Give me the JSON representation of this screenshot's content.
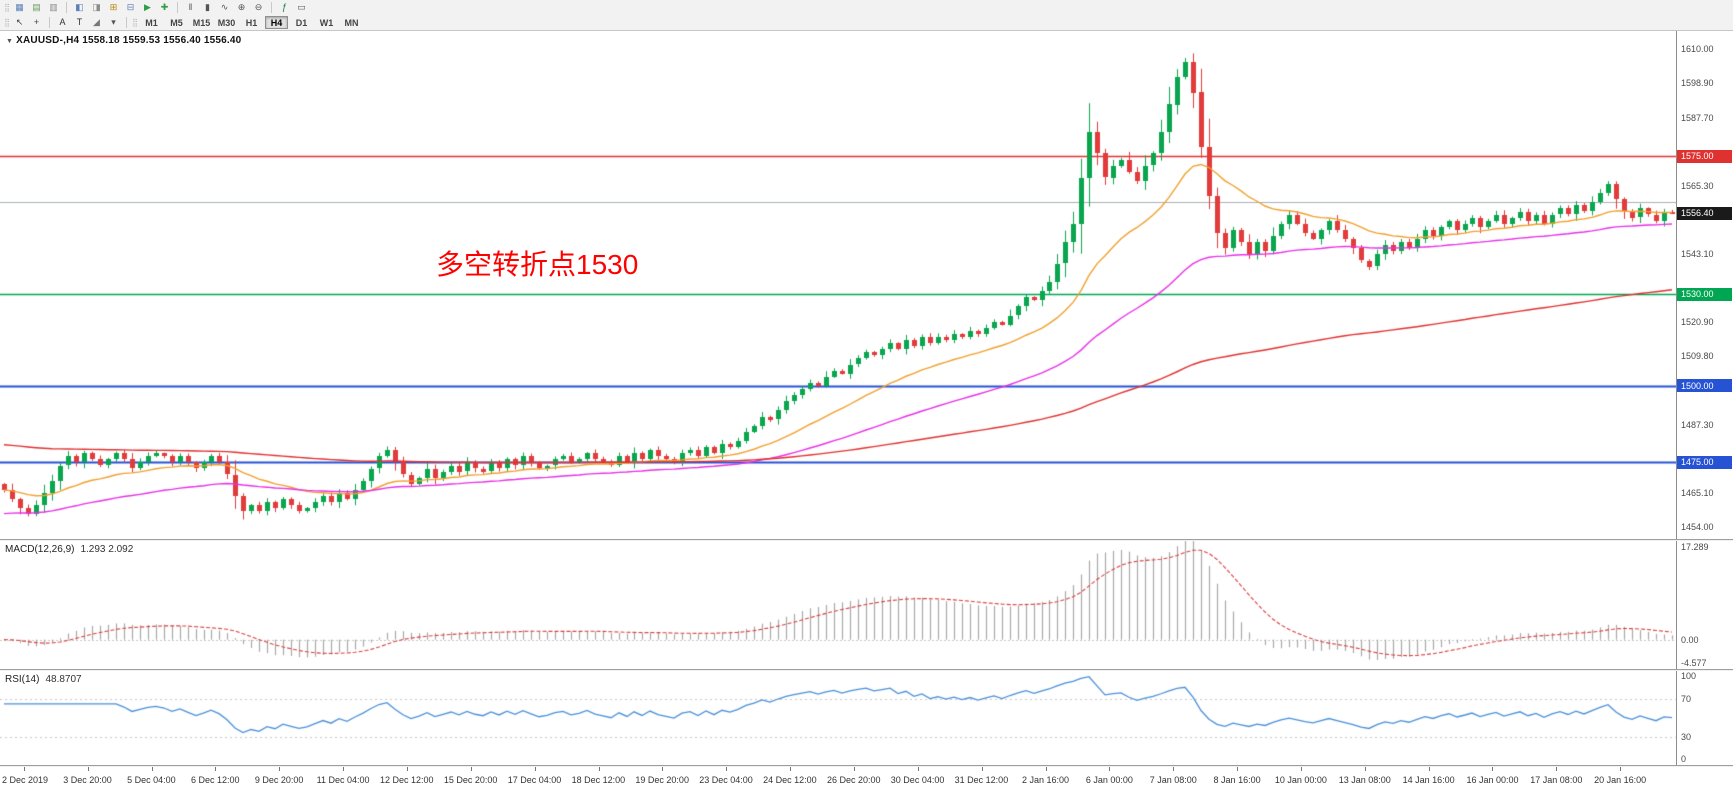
{
  "toolbar": {
    "row1_icons": [
      {
        "name": "toolbar-handle-icon",
        "glyph": "⣿",
        "color": "#b3b3b3",
        "handle": true
      },
      {
        "name": "new-order-icon",
        "glyph": "▦",
        "color": "#5b7fb9"
      },
      {
        "name": "charts-grid-icon",
        "glyph": "▤",
        "color": "#6a9e63"
      },
      {
        "name": "profiles-icon",
        "glyph": "▥",
        "color": "#8a8a8a"
      },
      {
        "name": "separator",
        "sep": true
      },
      {
        "name": "market-watch-icon",
        "glyph": "◧",
        "color": "#5b7fb9"
      },
      {
        "name": "data-window-icon",
        "glyph": "◨",
        "color": "#8a8a8a"
      },
      {
        "name": "navigator-icon",
        "glyph": "⊞",
        "color": "#b8860b"
      },
      {
        "name": "terminal-icon",
        "glyph": "⊟",
        "color": "#5b7fb9"
      },
      {
        "name": "autotrading-icon",
        "glyph": "▶",
        "color": "#2e9e46"
      },
      {
        "name": "new-chart-icon",
        "glyph": "✚",
        "color": "#2e9e46"
      },
      {
        "name": "separator",
        "sep": true
      },
      {
        "name": "bar-chart-icon",
        "glyph": "‖",
        "color": "#555555"
      },
      {
        "name": "candlestick-chart-icon",
        "glyph": "▮",
        "color": "#555555"
      },
      {
        "name": "line-chart-icon",
        "glyph": "∿",
        "color": "#555555"
      },
      {
        "name": "zoom-in-icon",
        "glyph": "⊕",
        "color": "#555555"
      },
      {
        "name": "zoom-out-icon",
        "glyph": "⊖",
        "color": "#555555"
      },
      {
        "name": "separator",
        "sep": true
      },
      {
        "name": "indicators-icon",
        "glyph": "ƒ",
        "color": "#0a7a3c"
      },
      {
        "name": "templates-icon",
        "glyph": "▭",
        "color": "#555555"
      }
    ],
    "row2_tools": [
      {
        "name": "toolbar-handle-icon",
        "glyph": "⣿",
        "color": "#b3b3b3",
        "handle": true
      },
      {
        "name": "cursor-tool-icon",
        "glyph": "↖",
        "color": "#444444"
      },
      {
        "name": "crosshair-tool-icon",
        "glyph": "+",
        "color": "#444444"
      },
      {
        "name": "separator",
        "sep": true
      },
      {
        "name": "text-label-tool-icon",
        "glyph": "A",
        "color": "#333333"
      },
      {
        "name": "font-tool-icon",
        "glyph": "T",
        "color": "#333333"
      },
      {
        "name": "shapes-tool-icon",
        "glyph": "◢",
        "color": "#777777"
      },
      {
        "name": "shapes-dropdown-icon",
        "glyph": "▾",
        "color": "#555555"
      },
      {
        "name": "separator",
        "sep": true
      },
      {
        "name": "toolbar-handle-icon",
        "glyph": "⣿",
        "color": "#b3b3b3",
        "handle": true
      }
    ],
    "timeframes": [
      "M1",
      "M5",
      "M15",
      "M30",
      "H1",
      "H4",
      "D1",
      "W1",
      "MN"
    ],
    "active_timeframe": "H4"
  },
  "chart_data": {
    "type": "candlestick",
    "symbol_title": "XAUUSD-,H4  1558.18 1559.53 1556.40 1556.40",
    "annotation": {
      "text": "多空转折点1530",
      "color": "#ff0000"
    },
    "colors": {
      "up": "#0aa64f",
      "down": "#e23b3b",
      "background": "#ffffff",
      "axis_text": "#4a4a4a"
    },
    "candles": {
      "first_open": 1468,
      "closes": [
        1466,
        1463,
        1460,
        1458,
        1461,
        1465,
        1469,
        1474,
        1477,
        1475,
        1478,
        1476,
        1474,
        1476,
        1478,
        1476,
        1473,
        1475,
        1477,
        1478,
        1477,
        1475,
        1477,
        1475,
        1473,
        1475,
        1477,
        1475,
        1471,
        1464,
        1459,
        1461,
        1459,
        1462,
        1460,
        1463,
        1461,
        1459,
        1460,
        1462,
        1464,
        1462,
        1465,
        1463,
        1466,
        1469,
        1473,
        1477,
        1479,
        1475,
        1471,
        1468,
        1470,
        1473,
        1470,
        1472,
        1474,
        1472,
        1475,
        1473,
        1472,
        1475,
        1473,
        1476,
        1474,
        1477,
        1475,
        1473,
        1474,
        1476,
        1477,
        1475,
        1476,
        1478,
        1476,
        1475,
        1474,
        1477,
        1475,
        1478,
        1476,
        1479,
        1477,
        1476,
        1475,
        1478,
        1479,
        1477,
        1480,
        1478,
        1481,
        1480,
        1482,
        1485,
        1487,
        1490,
        1489,
        1492,
        1495,
        1497,
        1499,
        1501,
        1500,
        1503,
        1505,
        1504,
        1507,
        1509,
        1511,
        1510,
        1512,
        1514,
        1512,
        1515,
        1513,
        1516,
        1514,
        1516,
        1515,
        1517,
        1516,
        1518,
        1517,
        1519,
        1521,
        1520,
        1523,
        1526,
        1529,
        1528,
        1531,
        1534,
        1540,
        1547,
        1553,
        1568,
        1583,
        1576,
        1568,
        1572,
        1574,
        1570,
        1567,
        1572,
        1576,
        1583,
        1592,
        1601,
        1606,
        1596,
        1578,
        1562,
        1550,
        1545,
        1551,
        1547,
        1543,
        1547,
        1544,
        1549,
        1553,
        1556,
        1553,
        1550,
        1548,
        1551,
        1554,
        1551,
        1548,
        1545,
        1541,
        1539,
        1543,
        1546,
        1544,
        1547,
        1545,
        1548,
        1551,
        1549,
        1552,
        1554,
        1551,
        1553,
        1555,
        1552,
        1554,
        1556,
        1553,
        1555,
        1557,
        1554,
        1556,
        1553,
        1556,
        1558,
        1556,
        1559,
        1557,
        1560,
        1563,
        1566,
        1561,
        1557,
        1555,
        1558,
        1556,
        1554,
        1557,
        1556.4
      ]
    },
    "moving_averages": [
      {
        "name": "ma-fast-orange",
        "period": 20,
        "seed": null,
        "color": "#f0a030"
      },
      {
        "name": "ma-mid-magenta",
        "period": 55,
        "seed": 1458,
        "color": "#e632e6"
      },
      {
        "name": "ma-slow-red",
        "period": 160,
        "seed": 1481,
        "color": "#e03131"
      }
    ],
    "hlines": [
      {
        "value": 1575,
        "color": "#e03131",
        "width": 1.5
      },
      {
        "value": 1560,
        "color": "#aab0b6",
        "width": 1
      },
      {
        "value": 1530,
        "color": "#00a651",
        "width": 1.5
      },
      {
        "value": 1500,
        "color": "#2653d4",
        "width": 2
      },
      {
        "value": 1475,
        "color": "#2653d4",
        "width": 2
      }
    ],
    "price_axis": {
      "min": 1450,
      "max": 1616,
      "ticks": [
        "1610.00",
        "1598.90",
        "1587.70",
        "1565.30",
        "1543.10",
        "1520.90",
        "1509.80",
        "1487.30",
        "1465.10",
        "1454.00"
      ],
      "badges": [
        {
          "label": "1575.00",
          "value": 1575,
          "color": "#e03131"
        },
        {
          "label": "1556.40",
          "value": 1556.4,
          "color": "#1a1a1a"
        },
        {
          "label": "1530.00",
          "value": 1530,
          "color": "#00a651"
        },
        {
          "label": "1500.00",
          "value": 1500,
          "color": "#2653d4"
        },
        {
          "label": "1475.00",
          "value": 1475,
          "color": "#2653d4"
        }
      ]
    },
    "macd": {
      "label": "MACD(12,26,9)",
      "values_text": "1.293 2.092",
      "range": [
        -5.5,
        18.5
      ],
      "histogram_color": "#a8a8a8",
      "signal_color": "#d94040",
      "axis_ticks": [
        {
          "label": "17.289",
          "value": 17.289
        },
        {
          "label": "0.00",
          "value": 0
        },
        {
          "label": "-4.577",
          "value": -4.577
        }
      ]
    },
    "rsi": {
      "label": "RSI(14)",
      "value_text": "48.8707",
      "line_color": "#4a90d9",
      "levels": [
        70,
        30
      ],
      "axis_ticks": [
        {
          "label": "100",
          "value": 100
        },
        {
          "label": "70",
          "value": 70
        },
        {
          "label": "30",
          "value": 30
        },
        {
          "label": "0",
          "value": 0
        }
      ]
    },
    "time_axis": [
      "2 Dec 2019",
      "3 Dec 20:00",
      "5 Dec 04:00",
      "6 Dec 12:00",
      "9 Dec 20:00",
      "11 Dec 04:00",
      "12 Dec 12:00",
      "15 Dec 20:00",
      "17 Dec 04:00",
      "18 Dec 12:00",
      "19 Dec 20:00",
      "23 Dec 04:00",
      "24 Dec 12:00",
      "26 Dec 20:00",
      "30 Dec 04:00",
      "31 Dec 12:00",
      "2 Jan 16:00",
      "6 Jan 00:00",
      "7 Jan 08:00",
      "8 Jan 16:00",
      "10 Jan 00:00",
      "13 Jan 08:00",
      "14 Jan 16:00",
      "16 Jan 00:00",
      "17 Jan 08:00",
      "20 Jan 16:00"
    ]
  }
}
